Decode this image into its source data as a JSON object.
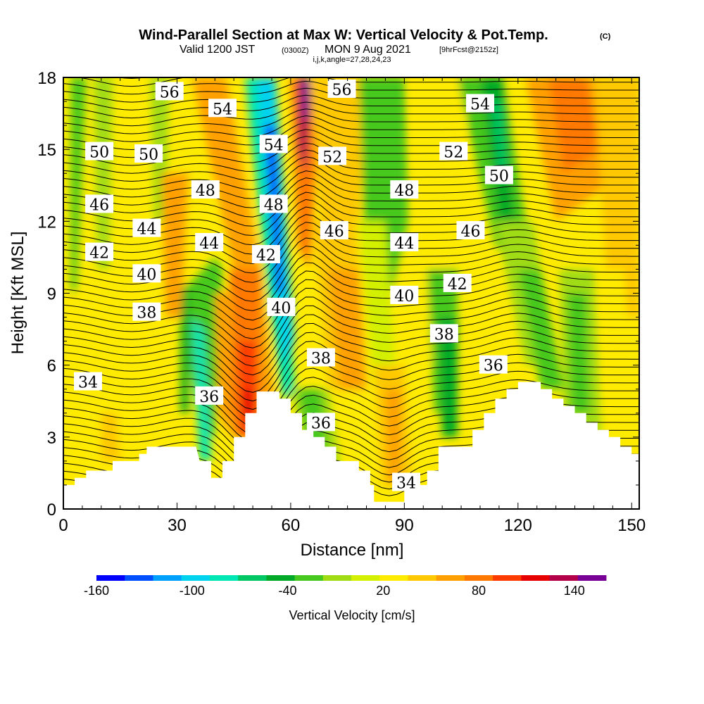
{
  "header": {
    "title_main": "Wind-Parallel Section at Max W: Vertical Velocity & Pot.Temp.",
    "title_mark": "(C)",
    "valid_a": "Valid 1200 JST",
    "valid_b": "(0300Z)",
    "valid_c": "MON 9 Aug 2021",
    "valid_d": "[9hrFcst@2152z]",
    "params": "i,j,k,angle=27,28,24,23"
  },
  "chart_data": {
    "type": "heatmap",
    "title": "Wind-Parallel Section at Max W: Vertical Velocity & Pot.Temp.",
    "xlabel": "Distance [nm]",
    "ylabel": "Height [Kft MSL]",
    "xlim": [
      0,
      152
    ],
    "ylim": [
      0,
      18
    ],
    "x_ticks": [
      "0",
      "30",
      "60",
      "90",
      "120",
      "150"
    ],
    "x_tick_values": [
      0,
      30,
      60,
      90,
      120,
      150
    ],
    "y_ticks": [
      "0",
      "3",
      "6",
      "9",
      "12",
      "15",
      "18"
    ],
    "y_tick_values": [
      0,
      3,
      6,
      9,
      12,
      15,
      18
    ],
    "colorbar": {
      "label": "Vertical Velocity [cm/s]",
      "min": -160,
      "max": 160,
      "step": 20,
      "tick_labels": [
        "-160",
        "-100",
        "-40",
        "20",
        "80",
        "140"
      ],
      "tick_values": [
        -160,
        -100,
        -40,
        20,
        80,
        140
      ],
      "colors": [
        "#0000ff",
        "#0050ff",
        "#00a0ff",
        "#00d2f0",
        "#00e6b4",
        "#00c864",
        "#00aa28",
        "#46c81e",
        "#a0dc14",
        "#d2f000",
        "#ffeb00",
        "#ffc800",
        "#ffa000",
        "#ff7800",
        "#ff3c00",
        "#e60000",
        "#b4004b",
        "#780096"
      ]
    },
    "theta_contour_labels": [
      {
        "text": "56",
        "x": 28,
        "y": 17.4
      },
      {
        "text": "54",
        "x": 42,
        "y": 16.7
      },
      {
        "text": "50",
        "x": 9.5,
        "y": 14.9
      },
      {
        "text": "50",
        "x": 22.5,
        "y": 14.8
      },
      {
        "text": "54",
        "x": 55.5,
        "y": 15.2
      },
      {
        "text": "56",
        "x": 73.5,
        "y": 17.5
      },
      {
        "text": "52",
        "x": 71,
        "y": 14.7
      },
      {
        "text": "52",
        "x": 103,
        "y": 14.9
      },
      {
        "text": "54",
        "x": 110,
        "y": 16.9
      },
      {
        "text": "50",
        "x": 115,
        "y": 13.9
      },
      {
        "text": "46",
        "x": 9.5,
        "y": 12.7
      },
      {
        "text": "48",
        "x": 37.5,
        "y": 13.3
      },
      {
        "text": "48",
        "x": 55.5,
        "y": 12.7
      },
      {
        "text": "48",
        "x": 90,
        "y": 13.3
      },
      {
        "text": "44",
        "x": 22,
        "y": 11.7
      },
      {
        "text": "44",
        "x": 38.5,
        "y": 11.1
      },
      {
        "text": "46",
        "x": 71.5,
        "y": 11.6
      },
      {
        "text": "44",
        "x": 90,
        "y": 11.1
      },
      {
        "text": "46",
        "x": 107.5,
        "y": 11.6
      },
      {
        "text": "42",
        "x": 9.5,
        "y": 10.7
      },
      {
        "text": "42",
        "x": 53.5,
        "y": 10.6
      },
      {
        "text": "40",
        "x": 22,
        "y": 9.8
      },
      {
        "text": "40",
        "x": 57.5,
        "y": 8.4
      },
      {
        "text": "40",
        "x": 90,
        "y": 8.9
      },
      {
        "text": "42",
        "x": 104,
        "y": 9.4
      },
      {
        "text": "38",
        "x": 22,
        "y": 8.2
      },
      {
        "text": "38",
        "x": 68,
        "y": 6.3
      },
      {
        "text": "38",
        "x": 100.5,
        "y": 7.3
      },
      {
        "text": "36",
        "x": 113.5,
        "y": 6
      },
      {
        "text": "34",
        "x": 6.5,
        "y": 5.3
      },
      {
        "text": "36",
        "x": 38.5,
        "y": 4.7
      },
      {
        "text": "36",
        "x": 68,
        "y": 3.6
      },
      {
        "text": "34",
        "x": 90.5,
        "y": 1.1
      }
    ]
  }
}
